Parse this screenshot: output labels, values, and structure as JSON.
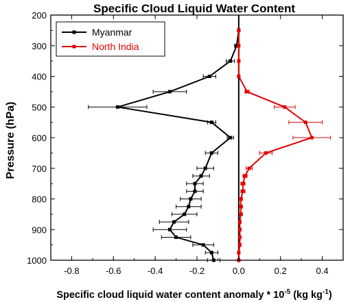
{
  "chart_data": {
    "type": "line",
    "title": "Specific Cloud Liquid Water Content",
    "ylabel": "Pressure (hPa)",
    "xlabel_parts": {
      "pre": "Specific cloud liquid water content anomaly * 10",
      "sup": "-5",
      "unit_pre": " (kg kg",
      "unit_sup": "-1",
      "unit_post": ")"
    },
    "xlim": [
      -0.9,
      0.5
    ],
    "ylim": [
      1000,
      200
    ],
    "y_inverted": true,
    "xticks": [
      -0.8,
      -0.6,
      -0.4,
      -0.2,
      0.0,
      0.2,
      0.4
    ],
    "xtick_labels": [
      "-0.8",
      "-0.6",
      "-0.4",
      "-0.2",
      "0.0",
      "0.2",
      "0.4"
    ],
    "yticks": [
      200,
      300,
      400,
      500,
      600,
      700,
      800,
      900,
      1000
    ],
    "ytick_labels": [
      "200",
      "300",
      "400",
      "500",
      "600",
      "700",
      "800",
      "900",
      "1000"
    ],
    "zero_line": true,
    "legend_position": "top-left",
    "series": [
      {
        "name": "Myanmar",
        "color": "#000000",
        "points": [
          {
            "x": 0.0,
            "y": 250,
            "err": 0.005
          },
          {
            "x": -0.01,
            "y": 300,
            "err": 0.01
          },
          {
            "x": -0.04,
            "y": 350,
            "err": 0.02
          },
          {
            "x": -0.14,
            "y": 400,
            "err": 0.03
          },
          {
            "x": -0.33,
            "y": 450,
            "err": 0.08
          },
          {
            "x": -0.58,
            "y": 500,
            "err": 0.14
          },
          {
            "x": -0.13,
            "y": 550,
            "err": 0.02
          },
          {
            "x": -0.04,
            "y": 600,
            "err": 0.015
          },
          {
            "x": -0.13,
            "y": 650,
            "err": 0.03
          },
          {
            "x": -0.16,
            "y": 700,
            "err": 0.04
          },
          {
            "x": -0.18,
            "y": 725,
            "err": 0.04
          },
          {
            "x": -0.21,
            "y": 750,
            "err": 0.04
          },
          {
            "x": -0.21,
            "y": 775,
            "err": 0.04
          },
          {
            "x": -0.23,
            "y": 800,
            "err": 0.05
          },
          {
            "x": -0.24,
            "y": 825,
            "err": 0.06
          },
          {
            "x": -0.26,
            "y": 850,
            "err": 0.06
          },
          {
            "x": -0.31,
            "y": 875,
            "err": 0.07
          },
          {
            "x": -0.33,
            "y": 900,
            "err": 0.08
          },
          {
            "x": -0.3,
            "y": 925,
            "err": 0.07
          },
          {
            "x": -0.17,
            "y": 950,
            "err": 0.05
          },
          {
            "x": -0.13,
            "y": 975,
            "err": 0.03
          },
          {
            "x": -0.12,
            "y": 1000,
            "err": 0.03
          }
        ]
      },
      {
        "name": "North India",
        "color": "#e00000",
        "points": [
          {
            "x": 0.0,
            "y": 250,
            "err": 0.003
          },
          {
            "x": 0.0,
            "y": 300,
            "err": 0.003
          },
          {
            "x": 0.0,
            "y": 350,
            "err": 0.003
          },
          {
            "x": 0.0,
            "y": 400,
            "err": 0.004
          },
          {
            "x": 0.04,
            "y": 450,
            "err": 0.01
          },
          {
            "x": 0.22,
            "y": 500,
            "err": 0.05
          },
          {
            "x": 0.32,
            "y": 550,
            "err": 0.08
          },
          {
            "x": 0.35,
            "y": 600,
            "err": 0.09
          },
          {
            "x": 0.13,
            "y": 650,
            "err": 0.03
          },
          {
            "x": 0.05,
            "y": 700,
            "err": 0.015
          },
          {
            "x": 0.03,
            "y": 725,
            "err": 0.01
          },
          {
            "x": 0.02,
            "y": 750,
            "err": 0.01
          },
          {
            "x": 0.02,
            "y": 775,
            "err": 0.01
          },
          {
            "x": 0.01,
            "y": 800,
            "err": 0.008
          },
          {
            "x": 0.01,
            "y": 825,
            "err": 0.008
          },
          {
            "x": 0.01,
            "y": 850,
            "err": 0.008
          },
          {
            "x": 0.005,
            "y": 875,
            "err": 0.006
          },
          {
            "x": 0.005,
            "y": 900,
            "err": 0.006
          },
          {
            "x": 0.005,
            "y": 925,
            "err": 0.005
          },
          {
            "x": 0.005,
            "y": 950,
            "err": 0.005
          },
          {
            "x": 0.0,
            "y": 975,
            "err": 0.004
          },
          {
            "x": 0.0,
            "y": 1000,
            "err": 0.004
          }
        ]
      }
    ]
  }
}
